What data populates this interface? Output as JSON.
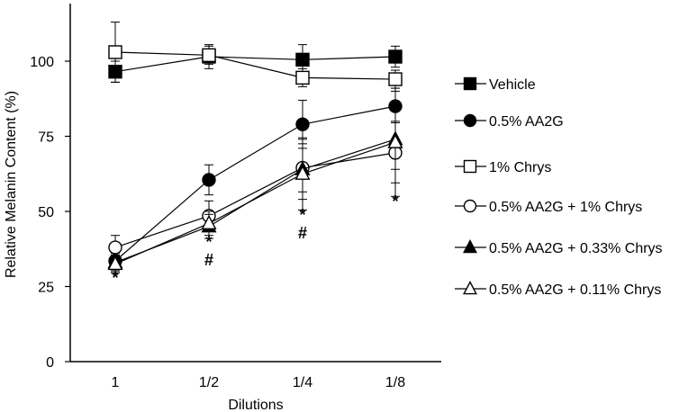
{
  "chart_data": {
    "type": "line",
    "title": "",
    "xlabel": "Dilutions",
    "ylabel": "Relative Melanin Content (%)",
    "categories": [
      "1",
      "1/2",
      "1/4",
      "1/8"
    ],
    "ylim": [
      0,
      110
    ],
    "yticks": [
      0,
      25,
      50,
      75,
      100
    ],
    "grid": false,
    "legend_position": "right",
    "series": [
      {
        "name": "Vehicle",
        "marker": "square",
        "filled": true,
        "values": [
          96.5,
          101.5,
          100.5,
          101.5
        ],
        "errors": [
          3.5,
          4,
          5,
          3.5
        ]
      },
      {
        "name": "0.5% AA2G",
        "marker": "circle",
        "filled": true,
        "values": [
          33.5,
          60.5,
          79,
          85
        ],
        "errors": [
          3,
          5,
          8,
          5
        ]
      },
      {
        "name": "1% Chrys",
        "marker": "square",
        "filled": false,
        "values": [
          103,
          102,
          94.5,
          94
        ],
        "errors": [
          10,
          3,
          3,
          3
        ]
      },
      {
        "name": "0.5% AA2G + 1% Chrys",
        "marker": "circle",
        "filled": false,
        "values": [
          38,
          48.5,
          64.5,
          69.5
        ],
        "errors": [
          4,
          5,
          8,
          10
        ]
      },
      {
        "name": "0.5% AA2G + 0.33% Chrys",
        "marker": "triangle",
        "filled": true,
        "values": [
          33,
          45,
          64,
          74
        ],
        "errors": [
          3,
          4,
          10,
          10
        ]
      },
      {
        "name": "0.5% AA2G + 0.11% Chrys",
        "marker": "triangle",
        "filled": false,
        "values": [
          32.5,
          46,
          62.5,
          73
        ],
        "errors": [
          3,
          4,
          12,
          18
        ]
      }
    ],
    "annotations": [
      {
        "category": "1",
        "y": 26,
        "text": "*"
      },
      {
        "category": "1/2",
        "y": 38,
        "text": "*"
      },
      {
        "category": "1/2",
        "y": 32,
        "text": "#"
      },
      {
        "category": "1/4",
        "y": 47,
        "text": "*"
      },
      {
        "category": "1/4",
        "y": 41,
        "text": "#"
      },
      {
        "category": "1/8",
        "y": 51.5,
        "text": "*"
      }
    ]
  }
}
